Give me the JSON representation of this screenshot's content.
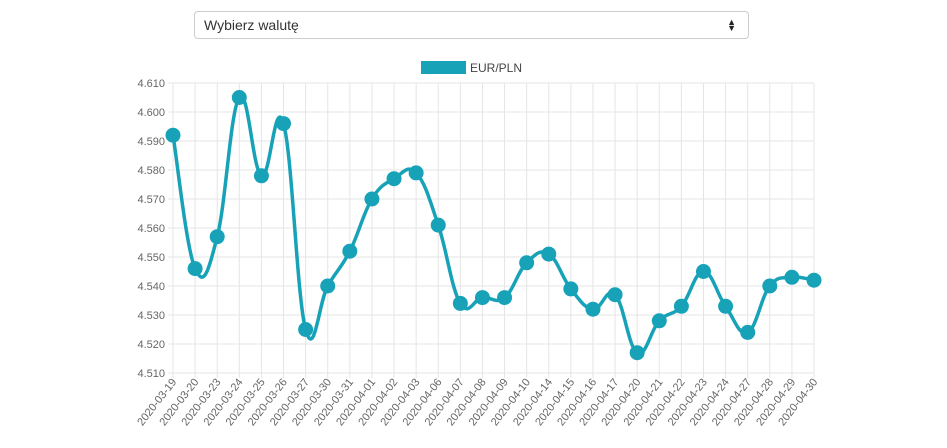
{
  "select": {
    "value": "Wybierz walutę",
    "icon": "sort-arrows-icon"
  },
  "chart_data": {
    "type": "line",
    "series": [
      {
        "name": "EUR/PLN",
        "color": "#17a2b8",
        "values": [
          4.592,
          4.546,
          4.557,
          4.605,
          4.578,
          4.596,
          4.525,
          4.54,
          4.552,
          4.57,
          4.577,
          4.579,
          4.561,
          4.534,
          4.536,
          4.536,
          4.548,
          4.551,
          4.539,
          4.532,
          4.537,
          4.517,
          4.528,
          4.533,
          4.545,
          4.533,
          4.524,
          4.54,
          4.543,
          4.542
        ]
      }
    ],
    "categories": [
      "2020-03-19",
      "2020-03-20",
      "2020-03-23",
      "2020-03-24",
      "2020-03-25",
      "2020-03-26",
      "2020-03-27",
      "2020-03-30",
      "2020-03-31",
      "2020-04-01",
      "2020-04-02",
      "2020-04-03",
      "2020-04-06",
      "2020-04-07",
      "2020-04-08",
      "2020-04-09",
      "2020-04-10",
      "2020-04-14",
      "2020-04-15",
      "2020-04-16",
      "2020-04-17",
      "2020-04-20",
      "2020-04-21",
      "2020-04-22",
      "2020-04-23",
      "2020-04-24",
      "2020-04-27",
      "2020-04-28",
      "2020-04-29",
      "2020-04-30"
    ],
    "ylim": [
      4.51,
      4.61
    ],
    "yticks": [
      "4.610",
      "4.600",
      "4.590",
      "4.580",
      "4.570",
      "4.560",
      "4.550",
      "4.540",
      "4.530",
      "4.520",
      "4.510"
    ],
    "legend_position": "top",
    "grid": true
  }
}
